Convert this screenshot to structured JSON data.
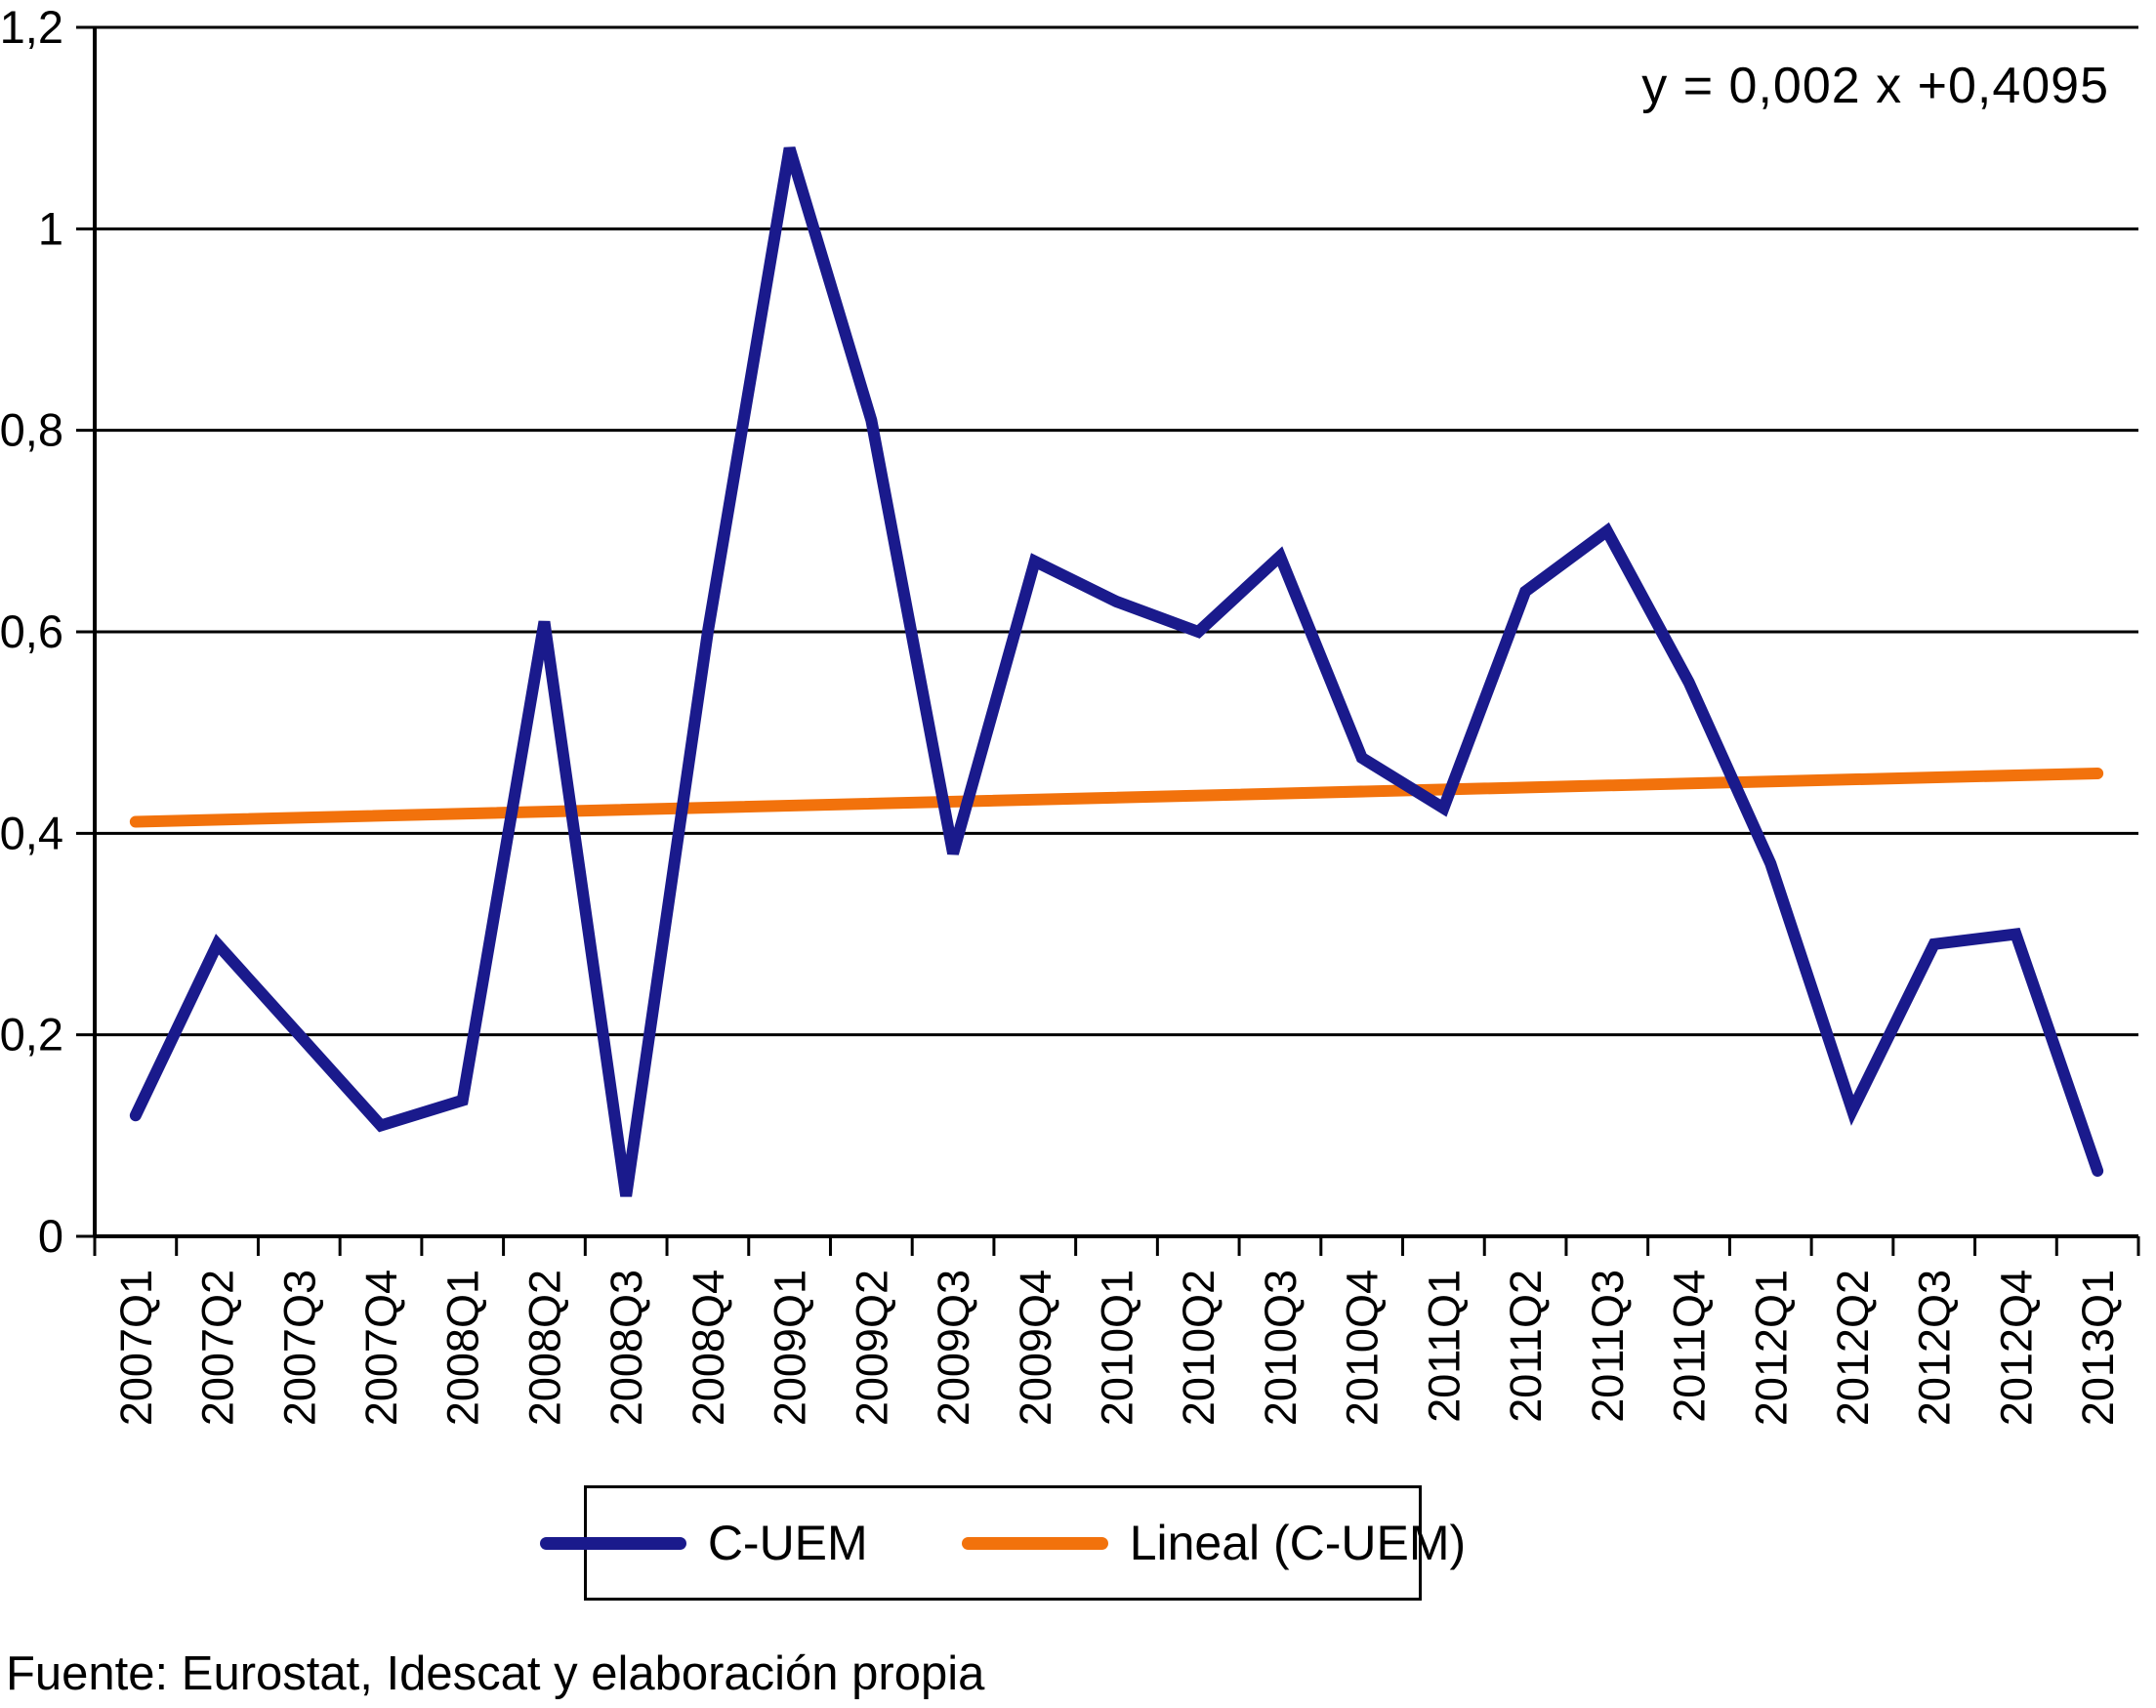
{
  "equation_label": "y = 0,002 x +0,4095",
  "source_note": "Fuente: Eurostat, Idescat y elaboración propia",
  "legend": {
    "series_label": "C-UEM",
    "trend_label": "Lineal (C-UEM)"
  },
  "colors": {
    "series": "#1A1A8C",
    "trend": "#F2720C",
    "grid": "#000000",
    "axis": "#000000",
    "text": "#000000",
    "background": "#FFFFFF"
  },
  "chart_data": {
    "type": "line",
    "title": "",
    "xlabel": "",
    "ylabel": "",
    "ylim": [
      0,
      1.2
    ],
    "grid": "horizontal",
    "legend_position": "bottom",
    "categories": [
      "2007Q1",
      "2007Q2",
      "2007Q3",
      "2007Q4",
      "2008Q1",
      "2008Q2",
      "2008Q3",
      "2008Q4",
      "2009Q1",
      "2009Q2",
      "2009Q3",
      "2009Q4",
      "2010Q1",
      "2010Q2",
      "2010Q3",
      "2010Q4",
      "2011Q1",
      "2011Q2",
      "2011Q3",
      "2011Q4",
      "2012Q1",
      "2012Q2",
      "2012Q3",
      "2012Q4",
      "2013Q1"
    ],
    "series": [
      {
        "name": "C-UEM",
        "color_key": "series",
        "values": [
          0.12,
          0.29,
          0.2,
          0.11,
          0.135,
          0.61,
          0.04,
          0.6,
          1.08,
          0.81,
          0.38,
          0.67,
          0.63,
          0.6,
          0.675,
          0.475,
          0.425,
          0.64,
          0.7,
          0.55,
          0.37,
          0.125,
          0.29,
          0.3,
          0.065
        ]
      },
      {
        "name": "Lineal (C-UEM)",
        "color_key": "trend",
        "kind": "trendline",
        "equation": "y = 0,002 x +0,4095",
        "slope_per_quarter": 0.002,
        "intercept": 0.4095,
        "start_value": 0.4115,
        "end_value": 0.4595
      }
    ],
    "y_ticks": [
      {
        "label": "0",
        "value": 0.0
      },
      {
        "label": "0,2",
        "value": 0.2
      },
      {
        "label": "0,4",
        "value": 0.4
      },
      {
        "label": "0,6",
        "value": 0.6
      },
      {
        "label": "0,8",
        "value": 0.8
      },
      {
        "label": "1",
        "value": 1.0
      },
      {
        "label": "1,2",
        "value": 1.2
      }
    ]
  }
}
